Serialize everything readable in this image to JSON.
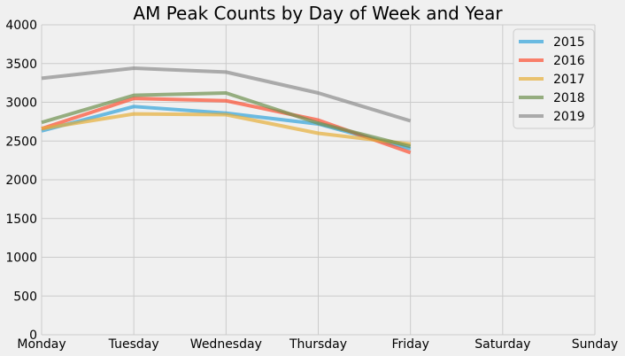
{
  "chart_data": {
    "type": "line",
    "title": "AM Peak Counts by Day of Week and Year",
    "xlabel": "",
    "ylabel": "",
    "categories": [
      "Monday",
      "Tuesday",
      "Wednesday",
      "Thursday",
      "Friday",
      "Saturday",
      "Sunday"
    ],
    "ylim": [
      0,
      4000
    ],
    "yticks": [
      0,
      500,
      1000,
      1500,
      2000,
      2500,
      3000,
      3500,
      4000
    ],
    "grid": true,
    "legend_position": "top-right",
    "series": [
      {
        "name": "2015",
        "color": "#30a2da",
        "values": [
          2630,
          2945,
          2860,
          2720,
          2400,
          null,
          null
        ]
      },
      {
        "name": "2016",
        "color": "#fc4f30",
        "values": [
          2660,
          3050,
          3020,
          2770,
          2350,
          null,
          null
        ]
      },
      {
        "name": "2017",
        "color": "#e5ae38",
        "values": [
          2660,
          2850,
          2840,
          2600,
          2460,
          null,
          null
        ]
      },
      {
        "name": "2018",
        "color": "#6d904f",
        "values": [
          2740,
          3090,
          3120,
          2730,
          2430,
          null,
          null
        ]
      },
      {
        "name": "2019",
        "color": "#8b8b8b",
        "values": [
          3310,
          3440,
          3390,
          3120,
          2760,
          null,
          null
        ]
      }
    ]
  }
}
